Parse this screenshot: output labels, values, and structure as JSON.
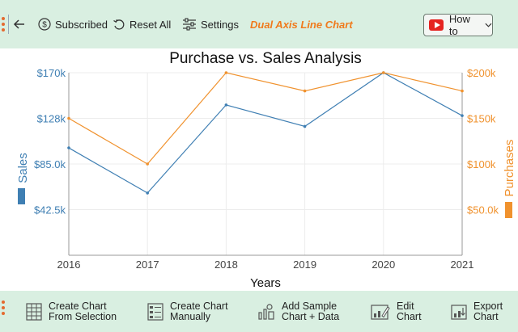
{
  "toolbar": {
    "subscribed_label": "Subscribed",
    "reset_label": "Reset All",
    "settings_label": "Settings",
    "chart_name": "Dual Axis Line Chart",
    "howto_label": "How to"
  },
  "bottom_toolbar": {
    "items": [
      {
        "line1": "Create Chart",
        "line2": "From Selection"
      },
      {
        "line1": "Create Chart",
        "line2": "Manually"
      },
      {
        "line1": "Add Sample",
        "line2": "Chart + Data"
      },
      {
        "line1": "Edit",
        "line2": "Chart"
      },
      {
        "line1": "Export",
        "line2": "Chart"
      }
    ]
  },
  "colors": {
    "sales": "#3f7fb3",
    "purchases": "#f0922e",
    "orange_accent": "#f07a1c"
  },
  "chart_data": {
    "type": "line",
    "title": "Purchase vs. Sales Analysis",
    "xlabel": "Years",
    "ylabel_left": "Sales",
    "ylabel_right": "Purchases",
    "x": [
      "2016",
      "2017",
      "2018",
      "2019",
      "2020",
      "2021"
    ],
    "series": [
      {
        "name": "Sales",
        "axis": "left",
        "values": [
          100000,
          58000,
          140000,
          120000,
          170000,
          130000
        ]
      },
      {
        "name": "Purchases",
        "axis": "right",
        "values": [
          150000,
          100000,
          200000,
          180000,
          200000,
          180000
        ]
      }
    ],
    "y_left": {
      "min": 0,
      "max": 170000,
      "ticks": [
        42500,
        85000,
        127500,
        170000
      ],
      "tick_labels": [
        "$42.5k",
        "$85.0k",
        "$128k",
        "$170k"
      ]
    },
    "y_right": {
      "min": 0,
      "max": 200000,
      "ticks": [
        50000,
        100000,
        150000,
        200000
      ],
      "tick_labels": [
        "$50.0k",
        "$100k",
        "$150k",
        "$200k"
      ]
    },
    "grid": true
  }
}
